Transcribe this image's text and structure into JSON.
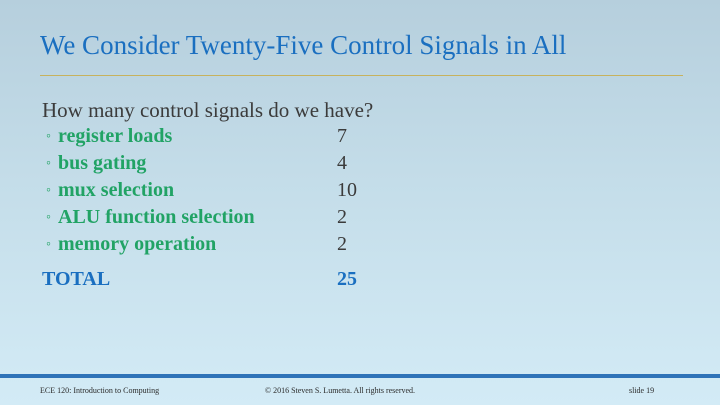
{
  "slide": {
    "title": "We Consider Twenty-Five Control Signals in All",
    "question": "How many control signals do we have?",
    "items": [
      {
        "label": "register loads",
        "value": "7"
      },
      {
        "label": "bus gating",
        "value": "4"
      },
      {
        "label": "mux selection",
        "value": "10"
      },
      {
        "label": "ALU function selection",
        "value": "2"
      },
      {
        "label": "memory operation",
        "value": "2"
      }
    ],
    "total_label": "TOTAL",
    "total_value": "25",
    "bullet_glyph": "◦"
  },
  "footer": {
    "course": "ECE 120: Introduction to Computing",
    "copyright": "© 2016 Steven S. Lumetta.  All rights reserved.",
    "slide_number": "slide 19"
  },
  "colors": {
    "title": "#1a6fc0",
    "item_label": "#21a365",
    "rule": "#c7b25e",
    "footer_bar": "#2f73b8"
  }
}
